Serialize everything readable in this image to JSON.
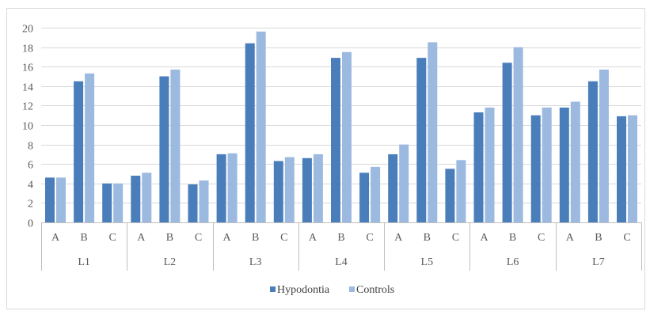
{
  "chart_data": {
    "type": "bar",
    "groups": [
      "L1",
      "L2",
      "L3",
      "L4",
      "L5",
      "L6",
      "L7"
    ],
    "subcategories": [
      "A",
      "B",
      "C"
    ],
    "ylim": [
      0,
      20
    ],
    "yticks": [
      0,
      2,
      4,
      6,
      8,
      10,
      12,
      14,
      16,
      18,
      20
    ],
    "grid": true,
    "legend_position": "bottom",
    "colors": {
      "Hypodontia": "#4a7ebb",
      "Controls": "#9cb9e0"
    },
    "series": [
      {
        "name": "Hypodontia",
        "values": [
          4.6,
          14.5,
          4.0,
          4.8,
          15.0,
          3.9,
          7.0,
          18.4,
          6.3,
          6.6,
          16.9,
          5.1,
          7.0,
          16.9,
          5.5,
          11.3,
          16.4,
          11.0,
          11.8,
          14.5,
          10.9
        ]
      },
      {
        "name": "Controls",
        "values": [
          4.6,
          15.3,
          4.0,
          5.1,
          15.7,
          4.3,
          7.1,
          19.6,
          6.7,
          7.0,
          17.5,
          5.7,
          8.0,
          18.5,
          6.4,
          11.8,
          18.0,
          11.8,
          12.4,
          15.7,
          11.0
        ]
      }
    ]
  }
}
